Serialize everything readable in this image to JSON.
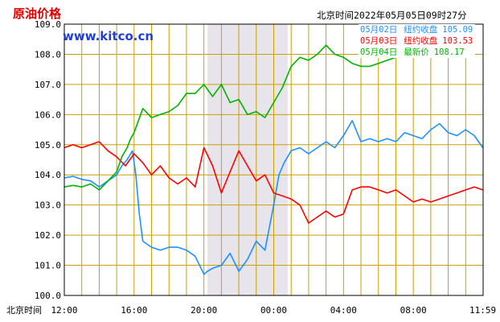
{
  "chart_data": {
    "type": "line",
    "title": "原油价格",
    "source": "www.kitco.cn",
    "timestamp": "北京时间2022年05月05日09时27分",
    "xlabel": "北京时间",
    "ylim": [
      100.0,
      109.0
    ],
    "y_ticks": [
      "100.0",
      "101.0",
      "102.0",
      "103.0",
      "104.0",
      "105.0",
      "106.0",
      "107.0",
      "108.0",
      "109.0"
    ],
    "x_ticks": [
      "12:00",
      "16:00",
      "20:00",
      "00:00",
      "04:00",
      "08:00",
      "11:59"
    ],
    "x_tick_hours": [
      0,
      4,
      8,
      12,
      16,
      20,
      23.98
    ],
    "x_range_hours": [
      0,
      24
    ],
    "shaded_region_hours": [
      8.2,
      12.8
    ],
    "grid": true,
    "legend_position": "top-right",
    "colors": {
      "blue": "#1e90ff",
      "red": "#ff0000",
      "green": "#00b400",
      "grid": "#c8a000",
      "shade": "#e8e4ec"
    },
    "series": [
      {
        "name": "05月02日",
        "label": "纽约收盘",
        "legend_value": "105.09",
        "color": "#1e90ff",
        "x": [
          0,
          0.5,
          1,
          1.5,
          2,
          2.5,
          3,
          3.3,
          3.6,
          3.9,
          4.1,
          4.3,
          4.5,
          5,
          5.5,
          6,
          6.5,
          7,
          7.5,
          8,
          8.2,
          8.5,
          9,
          9.5,
          10,
          10.5,
          11,
          11.5,
          12,
          12.3,
          12.6,
          13,
          13.5,
          14,
          14.5,
          15,
          15.5,
          16,
          16.5,
          17,
          17.5,
          18,
          18.5,
          19,
          19.5,
          20,
          20.5,
          21,
          21.5,
          22,
          22.5,
          23,
          23.5,
          23.98
        ],
        "y": [
          103.9,
          103.95,
          103.85,
          103.8,
          103.6,
          103.8,
          104.0,
          104.3,
          104.5,
          104.8,
          104.0,
          102.7,
          101.8,
          101.6,
          101.5,
          101.6,
          101.6,
          101.5,
          101.3,
          100.7,
          100.8,
          100.9,
          101.0,
          101.4,
          100.8,
          101.2,
          101.8,
          101.5,
          103.0,
          104.0,
          104.4,
          104.8,
          104.9,
          104.7,
          104.9,
          105.1,
          104.9,
          105.3,
          105.8,
          105.1,
          105.2,
          105.1,
          105.2,
          105.1,
          105.4,
          105.3,
          105.2,
          105.5,
          105.7,
          105.4,
          105.3,
          105.5,
          105.3,
          104.9
        ]
      },
      {
        "name": "05月03日",
        "label": "纽约收盘",
        "legend_value": "103.53",
        "color": "#ff0000",
        "x": [
          0,
          0.5,
          1,
          1.5,
          2,
          2.5,
          3,
          3.5,
          4,
          4.5,
          5,
          5.5,
          6,
          6.5,
          7,
          7.5,
          8,
          8.5,
          9,
          9.5,
          10,
          10.5,
          11,
          11.5,
          12,
          12.5,
          13,
          13.5,
          14,
          14.5,
          15,
          15.5,
          16,
          16.5,
          17,
          17.5,
          18,
          18.5,
          19,
          19.5,
          20,
          20.5,
          21,
          21.5,
          22,
          22.5,
          23,
          23.5,
          23.98
        ],
        "y": [
          104.9,
          105.0,
          104.9,
          105.0,
          105.1,
          104.8,
          104.6,
          104.3,
          104.7,
          104.4,
          104.0,
          104.3,
          103.9,
          103.7,
          103.9,
          103.6,
          104.9,
          104.3,
          103.4,
          104.1,
          104.8,
          104.3,
          103.8,
          104.0,
          103.4,
          103.3,
          103.2,
          103.0,
          102.4,
          102.6,
          102.8,
          102.6,
          102.7,
          103.5,
          103.6,
          103.6,
          103.5,
          103.4,
          103.5,
          103.3,
          103.1,
          103.2,
          103.1,
          103.2,
          103.3,
          103.4,
          103.5,
          103.6,
          103.5
        ]
      },
      {
        "name": "05月04日",
        "label": "最新价",
        "legend_value": "108.17",
        "color": "#00b400",
        "x": [
          0,
          0.5,
          1,
          1.5,
          2,
          2.5,
          3,
          3.3,
          3.6,
          3.8,
          4,
          4.5,
          5,
          5.5,
          6,
          6.5,
          7,
          7.5,
          8,
          8.5,
          9,
          9.5,
          10,
          10.5,
          11,
          11.5,
          12,
          12.5,
          13,
          13.5,
          14,
          14.5,
          15,
          15.5,
          16,
          16.5,
          17,
          17.5,
          18,
          18.5,
          19,
          19.5,
          19.8
        ],
        "y": [
          103.6,
          103.65,
          103.6,
          103.7,
          103.5,
          103.8,
          104.1,
          104.6,
          104.9,
          105.2,
          105.4,
          106.2,
          105.9,
          106.0,
          106.1,
          106.3,
          106.7,
          106.7,
          107.0,
          106.6,
          107.0,
          106.4,
          106.5,
          106.0,
          106.1,
          105.9,
          106.4,
          106.9,
          107.6,
          107.9,
          107.8,
          108.0,
          108.3,
          108.0,
          107.9,
          107.7,
          107.6,
          107.6,
          107.7,
          107.8,
          107.9,
          108.1,
          108.17
        ]
      }
    ]
  }
}
